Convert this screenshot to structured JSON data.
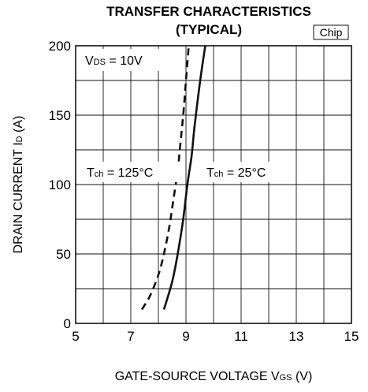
{
  "chart_data": {
    "type": "line",
    "title_line1": "TRANSFER CHARACTERISTICS",
    "title_line2": "(TYPICAL)",
    "badge": "Chip",
    "xlabel": {
      "main": "GATE-SOURCE VOLTAGE  V",
      "sub": "GS",
      "unit": " (V)"
    },
    "ylabel": {
      "main": "DRAIN CURRENT  I",
      "sub": "D",
      "unit": " (A)"
    },
    "xlim": [
      5,
      15
    ],
    "ylim": [
      0,
      200
    ],
    "x_ticks": [
      "5",
      "7",
      "9",
      "11",
      "13",
      "15"
    ],
    "y_ticks": [
      "0",
      "50",
      "100",
      "150",
      "200"
    ],
    "grid": true,
    "annotations": [
      {
        "main": "V",
        "sub": "DS",
        "rest": " = 10V"
      },
      {
        "main": "T",
        "sub": "ch",
        "rest": " = 125°C"
      },
      {
        "main": "T",
        "sub": "ch",
        "rest": " = 25°C"
      }
    ],
    "series": [
      {
        "condition": "Tch = 125°C",
        "style": "dashed",
        "x": [
          7.4,
          7.7,
          8.0,
          8.2,
          8.4,
          8.55,
          8.7,
          8.8,
          8.9,
          9.0,
          9.1
        ],
        "y": [
          10,
          20,
          35,
          50,
          70,
          90,
          110,
          130,
          150,
          175,
          200
        ]
      },
      {
        "condition": "Tch = 25°C",
        "style": "solid",
        "x": [
          8.2,
          8.5,
          8.7,
          8.9,
          9.05,
          9.2,
          9.3,
          9.42,
          9.55,
          9.7
        ],
        "y": [
          10,
          30,
          50,
          75,
          100,
          120,
          140,
          160,
          180,
          200
        ]
      }
    ]
  }
}
